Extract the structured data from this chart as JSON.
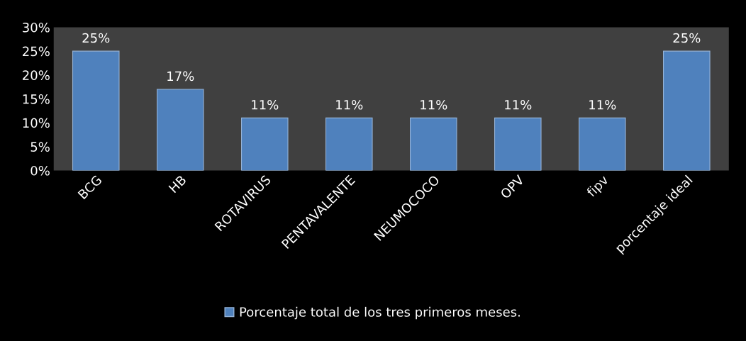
{
  "chart_data": {
    "type": "bar",
    "categories": [
      "BCG",
      "HB",
      "ROTAVIRUS",
      "PENTAVALENTE",
      "NEUMOCOCO",
      "OPV",
      "fipv",
      "porcentaje ideal"
    ],
    "series": [
      {
        "name": "Porcentaje total de los tres primeros meses.",
        "color": "#4f81bd",
        "values": [
          25,
          17,
          11,
          11,
          11,
          11,
          11,
          25
        ]
      }
    ],
    "value_labels": [
      "25%",
      "17%",
      "11%",
      "11%",
      "11%",
      "11%",
      "11%",
      "25%"
    ],
    "ylim": [
      0,
      30
    ],
    "yticks": [
      {
        "value": 0,
        "label": "0%"
      },
      {
        "value": 5,
        "label": "5%"
      },
      {
        "value": 10,
        "label": "10%"
      },
      {
        "value": 15,
        "label": "15%"
      },
      {
        "value": 20,
        "label": "20%"
      },
      {
        "value": 25,
        "label": "25%"
      },
      {
        "value": 30,
        "label": "30%"
      }
    ],
    "grid": false,
    "legend": "bottom"
  }
}
